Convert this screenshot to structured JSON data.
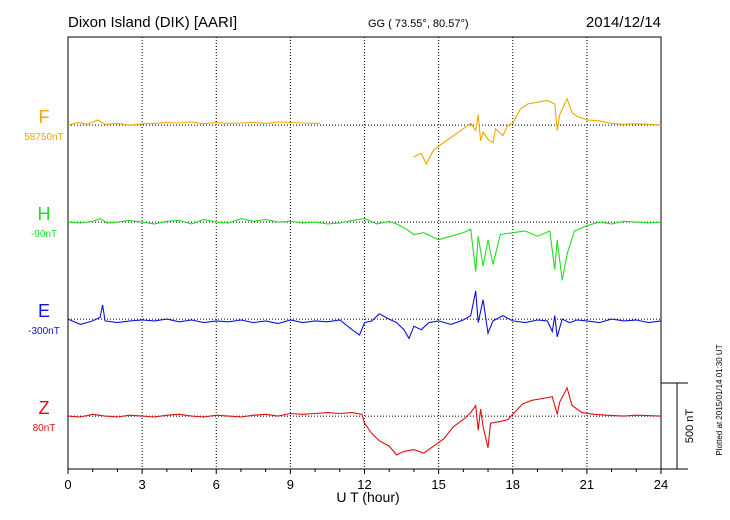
{
  "header": {
    "station": "Dixon Island (DIK)  [AARI]",
    "coords": "GG ( 73.55°,  80.57°)",
    "date": "2014/12/14"
  },
  "footer": {
    "xlabel": "U T (hour)",
    "plotted": "Plotted at 2015/01/14 01:30 UT",
    "scale_label": "500 nT"
  },
  "colors": {
    "F": "#f0a800",
    "H": "#22dd22",
    "E": "#1010dd",
    "Z": "#e01010",
    "grid": "#000000",
    "axis": "#000000"
  },
  "chart_data": {
    "type": "line",
    "title": "Dixon Island (DIK)  [AARI]",
    "xlabel": "U T (hour)",
    "ylabel": "",
    "xlim": [
      0,
      24
    ],
    "x_ticks": [
      0,
      3,
      6,
      9,
      12,
      15,
      18,
      21,
      24
    ],
    "x_tick_labels": [
      "0",
      "3",
      "6",
      "9",
      "12",
      "15",
      "18",
      "21",
      "24"
    ],
    "ylim_nT": [
      -300,
      2150
    ],
    "scale_bar_nT": 500,
    "grid": true,
    "series": [
      {
        "name": "F",
        "baseline_label": "58750nT",
        "baseline_nT": 58750,
        "offset_nT": 1650,
        "points": [
          [
            0,
            0
          ],
          [
            0.4,
            15
          ],
          [
            0.8,
            5
          ],
          [
            1.2,
            30
          ],
          [
            1.5,
            5
          ],
          [
            2,
            10
          ],
          [
            2.5,
            0
          ],
          [
            3,
            8
          ],
          [
            3.5,
            10
          ],
          [
            4,
            15
          ],
          [
            4.5,
            12
          ],
          [
            5,
            18
          ],
          [
            5.5,
            8
          ],
          [
            6,
            15
          ],
          [
            6.5,
            10
          ],
          [
            7,
            12
          ],
          [
            7.5,
            15
          ],
          [
            8,
            10
          ],
          [
            8.5,
            18
          ],
          [
            9,
            15
          ],
          [
            9.5,
            12
          ],
          [
            10.2,
            10
          ],
          [
            14,
            -180
          ],
          [
            14.3,
            -160
          ],
          [
            14.5,
            -220
          ],
          [
            14.8,
            -140
          ],
          [
            15,
            -120
          ],
          [
            15.3,
            -90
          ],
          [
            15.6,
            -60
          ],
          [
            16,
            -20
          ],
          [
            16.3,
            10
          ],
          [
            16.5,
            -30
          ],
          [
            16.6,
            60
          ],
          [
            16.7,
            -90
          ],
          [
            16.8,
            -40
          ],
          [
            17,
            -80
          ],
          [
            17.2,
            -100
          ],
          [
            17.3,
            -20
          ],
          [
            17.6,
            -60
          ],
          [
            17.8,
            0
          ],
          [
            18,
            10
          ],
          [
            18.3,
            90
          ],
          [
            18.6,
            120
          ],
          [
            19,
            130
          ],
          [
            19.4,
            140
          ],
          [
            19.7,
            120
          ],
          [
            19.8,
            -30
          ],
          [
            19.9,
            60
          ],
          [
            20.2,
            150
          ],
          [
            20.4,
            70
          ],
          [
            20.6,
            50
          ],
          [
            21,
            30
          ],
          [
            21.5,
            25
          ],
          [
            22,
            10
          ],
          [
            22.5,
            5
          ],
          [
            23,
            8
          ],
          [
            23.5,
            5
          ],
          [
            24,
            0
          ]
        ]
      },
      {
        "name": "H",
        "baseline_label": "-90nT",
        "baseline_nT": -90,
        "offset_nT": 1100,
        "points": [
          [
            0,
            0
          ],
          [
            0.5,
            -5
          ],
          [
            1,
            5
          ],
          [
            1.3,
            20
          ],
          [
            1.6,
            -5
          ],
          [
            2,
            0
          ],
          [
            2.5,
            10
          ],
          [
            3,
            0
          ],
          [
            3.5,
            -10
          ],
          [
            4,
            5
          ],
          [
            4.5,
            10
          ],
          [
            5,
            -10
          ],
          [
            5.5,
            15
          ],
          [
            6,
            0
          ],
          [
            6.5,
            -5
          ],
          [
            7,
            20
          ],
          [
            7.5,
            5
          ],
          [
            8,
            15
          ],
          [
            8.5,
            0
          ],
          [
            9,
            5
          ],
          [
            9.5,
            -5
          ],
          [
            10,
            0
          ],
          [
            10.5,
            -10
          ],
          [
            11,
            -5
          ],
          [
            11.5,
            10
          ],
          [
            12,
            20
          ],
          [
            12.5,
            -10
          ],
          [
            13,
            5
          ],
          [
            13.3,
            -10
          ],
          [
            13.7,
            -40
          ],
          [
            14,
            -70
          ],
          [
            14.4,
            -60
          ],
          [
            14.7,
            -80
          ],
          [
            15,
            -100
          ],
          [
            15.5,
            -80
          ],
          [
            16,
            -60
          ],
          [
            16.3,
            -40
          ],
          [
            16.5,
            -280
          ],
          [
            16.6,
            -80
          ],
          [
            16.8,
            -250
          ],
          [
            17,
            -100
          ],
          [
            17.2,
            -240
          ],
          [
            17.5,
            -70
          ],
          [
            18,
            -60
          ],
          [
            18.5,
            -50
          ],
          [
            19,
            -80
          ],
          [
            19.5,
            -50
          ],
          [
            19.7,
            -270
          ],
          [
            19.8,
            -100
          ],
          [
            20,
            -330
          ],
          [
            20.2,
            -180
          ],
          [
            20.5,
            -50
          ],
          [
            21,
            -20
          ],
          [
            21.5,
            0
          ],
          [
            22,
            -10
          ],
          [
            22.5,
            5
          ],
          [
            23,
            0
          ],
          [
            23.5,
            -5
          ],
          [
            24,
            0
          ]
        ]
      },
      {
        "name": "E",
        "baseline_label": "-300nT",
        "baseline_nT": -300,
        "offset_nT": 550,
        "points": [
          [
            0,
            0
          ],
          [
            0.5,
            -30
          ],
          [
            1,
            -10
          ],
          [
            1.3,
            10
          ],
          [
            1.4,
            80
          ],
          [
            1.5,
            -10
          ],
          [
            2,
            -20
          ],
          [
            2.5,
            -10
          ],
          [
            3,
            -5
          ],
          [
            3.5,
            -10
          ],
          [
            4,
            0
          ],
          [
            4.5,
            -15
          ],
          [
            5,
            -5
          ],
          [
            5.5,
            -20
          ],
          [
            6,
            -10
          ],
          [
            6.5,
            -15
          ],
          [
            7,
            -5
          ],
          [
            7.5,
            -20
          ],
          [
            8,
            -10
          ],
          [
            8.5,
            -25
          ],
          [
            9,
            -5
          ],
          [
            9.5,
            -20
          ],
          [
            10,
            -10
          ],
          [
            10.5,
            -15
          ],
          [
            11,
            -5
          ],
          [
            11.5,
            -60
          ],
          [
            11.8,
            -90
          ],
          [
            12,
            -20
          ],
          [
            12.3,
            -10
          ],
          [
            12.6,
            30
          ],
          [
            13,
            0
          ],
          [
            13.3,
            -20
          ],
          [
            13.6,
            -60
          ],
          [
            13.8,
            -110
          ],
          [
            14,
            -40
          ],
          [
            14.3,
            -60
          ],
          [
            14.6,
            -20
          ],
          [
            15,
            -10
          ],
          [
            15.5,
            -30
          ],
          [
            16,
            -5
          ],
          [
            16.3,
            20
          ],
          [
            16.5,
            160
          ],
          [
            16.6,
            -20
          ],
          [
            16.8,
            110
          ],
          [
            17,
            -80
          ],
          [
            17.2,
            -10
          ],
          [
            17.6,
            20
          ],
          [
            18,
            -10
          ],
          [
            18.5,
            -20
          ],
          [
            19,
            -5
          ],
          [
            19.4,
            -10
          ],
          [
            19.6,
            -70
          ],
          [
            19.7,
            20
          ],
          [
            19.8,
            -100
          ],
          [
            20,
            0
          ],
          [
            20.3,
            -20
          ],
          [
            20.6,
            -5
          ],
          [
            21,
            -10
          ],
          [
            21.5,
            -20
          ],
          [
            22,
            0
          ],
          [
            22.5,
            -10
          ],
          [
            23,
            -5
          ],
          [
            23.5,
            -20
          ],
          [
            24,
            -10
          ]
        ]
      },
      {
        "name": "Z",
        "baseline_label": "80nT",
        "baseline_nT": 80,
        "offset_nT": 0,
        "points": [
          [
            0,
            0
          ],
          [
            0.5,
            -5
          ],
          [
            1,
            10
          ],
          [
            1.5,
            0
          ],
          [
            2,
            -5
          ],
          [
            2.5,
            5
          ],
          [
            3,
            0
          ],
          [
            3.5,
            -5
          ],
          [
            4,
            5
          ],
          [
            4.5,
            10
          ],
          [
            5,
            0
          ],
          [
            5.5,
            -5
          ],
          [
            6,
            5
          ],
          [
            6.5,
            0
          ],
          [
            7,
            -5
          ],
          [
            7.5,
            5
          ],
          [
            8,
            10
          ],
          [
            8.5,
            0
          ],
          [
            9,
            15
          ],
          [
            9.5,
            10
          ],
          [
            10,
            15
          ],
          [
            10.5,
            20
          ],
          [
            11,
            15
          ],
          [
            11.5,
            20
          ],
          [
            11.9,
            10
          ],
          [
            12,
            -40
          ],
          [
            12.3,
            -100
          ],
          [
            12.6,
            -140
          ],
          [
            13,
            -170
          ],
          [
            13.3,
            -220
          ],
          [
            13.6,
            -200
          ],
          [
            14,
            -190
          ],
          [
            14.4,
            -210
          ],
          [
            14.8,
            -170
          ],
          [
            15.2,
            -130
          ],
          [
            15.6,
            -60
          ],
          [
            16,
            -20
          ],
          [
            16.3,
            20
          ],
          [
            16.5,
            60
          ],
          [
            16.6,
            -80
          ],
          [
            16.7,
            40
          ],
          [
            16.8,
            -60
          ],
          [
            17,
            -180
          ],
          [
            17.1,
            -40
          ],
          [
            17.5,
            -30
          ],
          [
            17.8,
            -20
          ],
          [
            18,
            10
          ],
          [
            18.4,
            70
          ],
          [
            18.8,
            90
          ],
          [
            19.2,
            100
          ],
          [
            19.6,
            110
          ],
          [
            19.8,
            10
          ],
          [
            19.9,
            80
          ],
          [
            20.2,
            160
          ],
          [
            20.4,
            60
          ],
          [
            20.8,
            20
          ],
          [
            21.3,
            10
          ],
          [
            21.8,
            5
          ],
          [
            22.5,
            0
          ],
          [
            23,
            5
          ],
          [
            24,
            0
          ]
        ]
      }
    ]
  }
}
